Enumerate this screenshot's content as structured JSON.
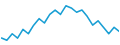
{
  "chart_data": {
    "type": "line",
    "x": [
      0,
      1,
      2,
      3,
      4,
      5,
      6,
      7,
      8,
      9,
      10,
      11,
      12,
      13,
      14,
      15,
      16,
      17,
      18,
      19,
      20,
      21,
      22
    ],
    "values": [
      3,
      2,
      5,
      3,
      7,
      5,
      9,
      12,
      10,
      14,
      16,
      14,
      18,
      17,
      15,
      16,
      13,
      9,
      11,
      8,
      5,
      8,
      6
    ],
    "color": "#1a9fd4",
    "xlim": [
      0,
      22
    ],
    "ylim": [
      0,
      20
    ],
    "tick_labels": false
  }
}
